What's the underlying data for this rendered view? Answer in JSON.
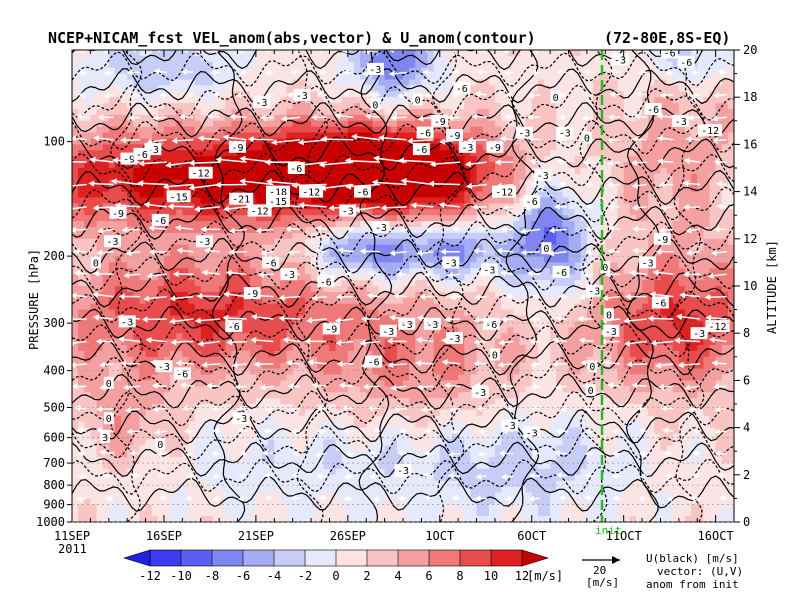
{
  "chart_data": {
    "type": "heatmap",
    "title": "NCEP+NICAM_fcst VEL_anom(abs,vector) & U_anom(contour)",
    "region": "(72-80E,8S-EQ)",
    "xlabel": "",
    "ylabel": "PRESSURE [hPa]",
    "y2label": "ALTITUDE [km]",
    "year_label": "2011",
    "x_ticks": [
      "11SEP",
      "16SEP",
      "21SEP",
      "26SEP",
      "1OCT",
      "6OCT",
      "11OCT",
      "16OCT"
    ],
    "y_ticks": [
      100,
      200,
      300,
      400,
      500,
      600,
      700,
      800,
      900,
      1000
    ],
    "y2_ticks": [
      0,
      2,
      4,
      6,
      8,
      10,
      12,
      14,
      16,
      18,
      20
    ],
    "init_marker_label": "init",
    "colorbar": {
      "ticks": [
        -12,
        -10,
        -8,
        -6,
        -4,
        -2,
        0,
        2,
        4,
        6,
        8,
        10,
        12
      ],
      "unit": "[m/s]",
      "colors": [
        "#1f1fe6",
        "#3b3bf0",
        "#5a5ef2",
        "#7f86f2",
        "#a4acf4",
        "#c7cdf7",
        "#e6e8fb",
        "#fbe4e4",
        "#f8c4c4",
        "#f4a0a0",
        "#ef7878",
        "#e84c4c",
        "#dd2020",
        "#c80000"
      ]
    },
    "vector_ref": {
      "value": "20",
      "unit": "[m/s]"
    },
    "notes": [
      "U(black) [m/s]",
      "vector: (U,V)",
      "anom from init"
    ],
    "contour_labels": [
      {
        "text": "-3",
        "day": 10.3,
        "km": 17.8
      },
      {
        "text": "-3",
        "day": 4.4,
        "km": 15.8
      },
      {
        "text": "-9",
        "day": 3.1,
        "km": 15.4
      },
      {
        "text": "-6",
        "day": 3.8,
        "km": 15.6
      },
      {
        "text": "-9",
        "day": 9.0,
        "km": 15.9
      },
      {
        "text": "-12",
        "day": 7.0,
        "km": 14.8
      },
      {
        "text": "-6",
        "day": 12.2,
        "km": 15.0
      },
      {
        "text": "-15",
        "day": 5.8,
        "km": 13.8
      },
      {
        "text": "-21",
        "day": 9.2,
        "km": 13.7
      },
      {
        "text": "-18",
        "day": 11.2,
        "km": 14.0
      },
      {
        "text": "-15",
        "day": 11.2,
        "km": 13.6
      },
      {
        "text": "-12",
        "day": 13.0,
        "km": 14.0
      },
      {
        "text": "-12",
        "day": 10.2,
        "km": 13.2
      },
      {
        "text": "-9",
        "day": 2.5,
        "km": 13.1
      },
      {
        "text": "-6",
        "day": 4.8,
        "km": 12.8
      },
      {
        "text": "-6",
        "day": 15.8,
        "km": 14.0
      },
      {
        "text": "-3",
        "day": 15.0,
        "km": 13.2
      },
      {
        "text": "-3",
        "day": 16.8,
        "km": 12.5
      },
      {
        "text": "-6",
        "day": 19.0,
        "km": 15.8
      },
      {
        "text": "-6",
        "day": 19.2,
        "km": 16.5
      },
      {
        "text": "-9",
        "day": 20.8,
        "km": 16.4
      },
      {
        "text": "-9",
        "day": 20.0,
        "km": 17.0
      },
      {
        "text": "-3",
        "day": 21.5,
        "km": 15.9
      },
      {
        "text": "-12",
        "day": 23.5,
        "km": 14.0
      },
      {
        "text": "-6",
        "day": 25.0,
        "km": 13.6
      },
      {
        "text": "-3",
        "day": 25.6,
        "km": 14.7
      },
      {
        "text": "-6",
        "day": 21.2,
        "km": 18.4
      },
      {
        "text": "-9",
        "day": 23.0,
        "km": 15.9
      },
      {
        "text": "-3",
        "day": 24.6,
        "km": 16.5
      },
      {
        "text": "-3",
        "day": 26.8,
        "km": 16.5
      },
      {
        "text": "-3",
        "day": 16.5,
        "km": 19.2
      },
      {
        "text": "-3",
        "day": 12.5,
        "km": 18.1
      },
      {
        "text": "0",
        "day": 18.8,
        "km": 17.9
      },
      {
        "text": "-3",
        "day": 2.2,
        "km": 11.9
      },
      {
        "text": "-3",
        "day": 7.2,
        "km": 11.9
      },
      {
        "text": "0",
        "day": 1.3,
        "km": 11.0
      },
      {
        "text": "-6",
        "day": 10.8,
        "km": 11.0
      },
      {
        "text": "-3",
        "day": 11.8,
        "km": 10.5
      },
      {
        "text": "-9",
        "day": 9.8,
        "km": 9.7
      },
      {
        "text": "-6",
        "day": 13.8,
        "km": 10.2
      },
      {
        "text": "-9",
        "day": 14.1,
        "km": 8.2
      },
      {
        "text": "-6",
        "day": 8.8,
        "km": 8.3
      },
      {
        "text": "-3",
        "day": 3.0,
        "km": 8.5
      },
      {
        "text": "-3",
        "day": 19.6,
        "km": 8.4
      },
      {
        "text": "-3",
        "day": 18.2,
        "km": 8.4
      },
      {
        "text": "-6",
        "day": 22.8,
        "km": 8.4
      },
      {
        "text": "-3",
        "day": 20.8,
        "km": 7.8
      },
      {
        "text": "-3",
        "day": 17.2,
        "km": 8.1
      },
      {
        "text": "0",
        "day": 23.0,
        "km": 7.1
      },
      {
        "text": "-6",
        "day": 16.4,
        "km": 6.8
      },
      {
        "text": "-3",
        "day": 5.0,
        "km": 6.6
      },
      {
        "text": "-6",
        "day": 6.0,
        "km": 6.3
      },
      {
        "text": "0",
        "day": 2.0,
        "km": 5.9
      },
      {
        "text": "-3",
        "day": 22.2,
        "km": 5.5
      },
      {
        "text": "-3",
        "day": 23.8,
        "km": 4.1
      },
      {
        "text": "-3",
        "day": 25.0,
        "km": 3.8
      },
      {
        "text": "-3",
        "day": 9.2,
        "km": 4.4
      },
      {
        "text": "-3",
        "day": 18.0,
        "km": 2.2
      },
      {
        "text": "0",
        "day": 4.8,
        "km": 3.3
      },
      {
        "text": "0",
        "day": 2.0,
        "km": 4.4
      },
      {
        "text": "3",
        "day": 1.8,
        "km": 3.6
      },
      {
        "text": "0",
        "day": 16.5,
        "km": 17.7
      },
      {
        "text": "0",
        "day": 29.0,
        "km": 10.8
      },
      {
        "text": "0",
        "day": 29.2,
        "km": 8.8
      },
      {
        "text": "-6",
        "day": 26.6,
        "km": 10.6
      },
      {
        "text": "-3",
        "day": 28.4,
        "km": 9.8
      },
      {
        "text": "-3",
        "day": 20.6,
        "km": 11.0
      },
      {
        "text": "-3",
        "day": 22.7,
        "km": 10.7
      },
      {
        "text": "0",
        "day": 25.8,
        "km": 11.6
      },
      {
        "text": "0",
        "day": 28.3,
        "km": 6.6
      },
      {
        "text": "-3",
        "day": 29.8,
        "km": 19.6
      },
      {
        "text": "-6",
        "day": 31.6,
        "km": 17.5
      },
      {
        "text": "-3",
        "day": 33.1,
        "km": 17.0
      },
      {
        "text": "-12",
        "day": 34.7,
        "km": 16.6
      },
      {
        "text": "-6",
        "day": 33.4,
        "km": 19.5
      },
      {
        "text": "-6",
        "day": 32.5,
        "km": 19.9
      },
      {
        "text": "-9",
        "day": 32.1,
        "km": 12.0
      },
      {
        "text": "-3",
        "day": 31.3,
        "km": 11.0
      },
      {
        "text": "-3",
        "day": 34.1,
        "km": 8.0
      },
      {
        "text": "-6",
        "day": 32.0,
        "km": 9.3
      },
      {
        "text": "-12",
        "day": 35.1,
        "km": 8.3
      },
      {
        "text": "-3",
        "day": 29.3,
        "km": 8.1
      },
      {
        "text": "0",
        "day": 28.2,
        "km": 5.6
      },
      {
        "text": "0",
        "day": 26.3,
        "km": 18.0
      },
      {
        "text": "0",
        "day": 28.0,
        "km": 16.3
      }
    ]
  }
}
